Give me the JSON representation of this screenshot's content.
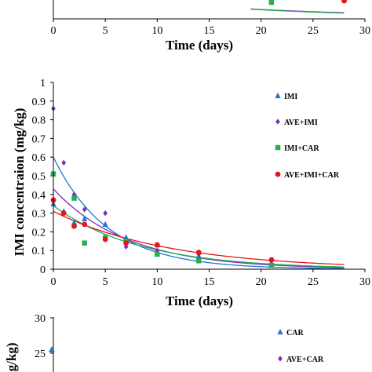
{
  "chart_data": [
    {
      "type": "line",
      "partial": "top-clipped",
      "xlabel": "Time (days)",
      "xlim": [
        0,
        30
      ],
      "xticks": [
        "0",
        "5",
        "10",
        "15",
        "20",
        "25",
        "30"
      ],
      "visible_points": [
        {
          "series": "IMI+CAR",
          "x": 21,
          "marker": "square",
          "color": "#22b14c"
        },
        {
          "series": "AVE+IMI+CAR",
          "x": 28,
          "marker": "circle",
          "color": "#e8141c"
        }
      ],
      "curves": [
        {
          "color": "#1f77d0",
          "k": 0.0722
        },
        {
          "color": "#7b2cbf",
          "k": 0.068
        },
        {
          "color": "#22b14c",
          "k": 0.075
        }
      ]
    },
    {
      "type": "scatter",
      "ylabel": "IMI concentraion (mg/kg)",
      "xlabel": "Time (days)",
      "xlim": [
        0,
        30
      ],
      "ylim": [
        0,
        1
      ],
      "xticks": [
        "0",
        "5",
        "10",
        "15",
        "20",
        "25",
        "30"
      ],
      "yticks": [
        "0",
        "0.1",
        "0.2",
        "0.3",
        "0.4",
        "0.5",
        "0.6",
        "0.7",
        "0.8",
        "0.9",
        "1"
      ],
      "series": [
        {
          "name": "IMI",
          "marker": "triangle",
          "color": "#1f77d0",
          "points": [
            [
              0,
              0.35
            ],
            [
              1,
              0.31
            ],
            [
              2,
              0.25
            ],
            [
              3,
              0.27
            ],
            [
              5,
              0.24
            ],
            [
              7,
              0.17
            ],
            [
              10,
              0.13
            ],
            [
              14,
              0.07
            ],
            [
              21,
              0.02
            ]
          ],
          "fit": {
            "a": 0.6,
            "k": 0.19
          }
        },
        {
          "name": "AVE+IMI",
          "marker": "diamond",
          "color": "#7b2cbf",
          "points": [
            [
              0,
              0.86
            ],
            [
              1,
              0.57
            ],
            [
              2,
              0.4
            ],
            [
              3,
              0.32
            ],
            [
              5,
              0.3
            ],
            [
              7,
              0.12
            ],
            [
              10,
              0.1
            ],
            [
              14,
              0.08
            ],
            [
              21,
              0.03
            ]
          ],
          "fit": {
            "a": 0.43,
            "k": 0.14
          }
        },
        {
          "name": "IMI+CAR",
          "marker": "square",
          "color": "#22b14c",
          "points": [
            [
              0,
              0.51
            ],
            [
              2,
              0.38
            ],
            [
              3,
              0.14
            ],
            [
              5,
              0.17
            ],
            [
              7,
              0.15
            ],
            [
              10,
              0.08
            ],
            [
              14,
              0.045
            ],
            [
              21,
              0.02
            ]
          ],
          "fit": {
            "a": 0.34,
            "k": 0.12
          }
        },
        {
          "name": "AVE+IMI+CAR",
          "marker": "circle",
          "color": "#e8141c",
          "points": [
            [
              0,
              0.37
            ],
            [
              1,
              0.3
            ],
            [
              2,
              0.23
            ],
            [
              3,
              0.24
            ],
            [
              5,
              0.16
            ],
            [
              7,
              0.14
            ],
            [
              10,
              0.13
            ],
            [
              14,
              0.09
            ],
            [
              21,
              0.05
            ]
          ],
          "fit": {
            "a": 0.31,
            "k": 0.09
          }
        }
      ]
    },
    {
      "type": "scatter",
      "partial": "bottom-clipped",
      "ylabel_visible": "mg/kg)",
      "ylim": [
        0,
        30
      ],
      "yticks": [
        "25",
        "30"
      ],
      "series": [
        {
          "name": "CAR",
          "marker": "triangle",
          "color": "#1f77d0",
          "points": [
            [
              0,
              25.5
            ]
          ]
        },
        {
          "name": "AVE+CAR",
          "marker": "diamond",
          "color": "#7b2cbf",
          "points": []
        }
      ]
    }
  ]
}
